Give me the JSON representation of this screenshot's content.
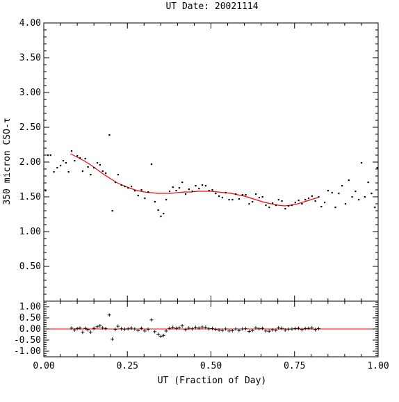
{
  "chart_data": [
    {
      "type": "scatter",
      "title": "UT Date: 20021114",
      "xlabel": "",
      "ylabel": "350 micron CSO-τ",
      "xlim": [
        0,
        1
      ],
      "ylim": [
        0,
        4
      ],
      "x_ticks": [
        "0.00",
        "0.25",
        "0.50",
        "0.75",
        "1.00"
      ],
      "y_ticks": [
        "4.00",
        "3.50",
        "3.00",
        "2.50",
        "2.00",
        "1.50",
        "1.00",
        "0.50"
      ],
      "grid": false,
      "series": [
        {
          "marker": "dot",
          "color": "#000000",
          "points": [
            [
              0.005,
              1.59
            ],
            [
              0.012,
              2.1
            ],
            [
              0.02,
              2.1
            ],
            [
              0.03,
              1.86
            ],
            [
              0.04,
              1.92
            ],
            [
              0.05,
              1.95
            ],
            [
              0.058,
              2.02
            ],
            [
              0.066,
              1.99
            ],
            [
              0.074,
              1.86
            ],
            [
              0.083,
              2.16
            ],
            [
              0.092,
              2.02
            ],
            [
              0.1,
              2.09
            ],
            [
              0.108,
              2.06
            ],
            [
              0.116,
              1.87
            ],
            [
              0.124,
              2.05
            ],
            [
              0.132,
              1.93
            ],
            [
              0.14,
              1.82
            ],
            [
              0.15,
              1.92
            ],
            [
              0.16,
              1.99
            ],
            [
              0.168,
              1.96
            ],
            [
              0.176,
              1.87
            ],
            [
              0.185,
              1.84
            ],
            [
              0.196,
              2.39
            ],
            [
              0.205,
              1.3
            ],
            [
              0.214,
              1.71
            ],
            [
              0.222,
              1.82
            ],
            [
              0.232,
              1.67
            ],
            [
              0.242,
              1.65
            ],
            [
              0.252,
              1.63
            ],
            [
              0.262,
              1.65
            ],
            [
              0.272,
              1.59
            ],
            [
              0.282,
              1.52
            ],
            [
              0.292,
              1.6
            ],
            [
              0.302,
              1.48
            ],
            [
              0.312,
              1.57
            ],
            [
              0.322,
              1.97
            ],
            [
              0.332,
              1.43
            ],
            [
              0.342,
              1.31
            ],
            [
              0.35,
              1.22
            ],
            [
              0.358,
              1.26
            ],
            [
              0.366,
              1.46
            ],
            [
              0.376,
              1.58
            ],
            [
              0.386,
              1.64
            ],
            [
              0.396,
              1.59
            ],
            [
              0.405,
              1.63
            ],
            [
              0.414,
              1.71
            ],
            [
              0.424,
              1.54
            ],
            [
              0.434,
              1.61
            ],
            [
              0.444,
              1.58
            ],
            [
              0.454,
              1.66
            ],
            [
              0.464,
              1.62
            ],
            [
              0.474,
              1.67
            ],
            [
              0.484,
              1.66
            ],
            [
              0.494,
              1.59
            ],
            [
              0.504,
              1.6
            ],
            [
              0.514,
              1.55
            ],
            [
              0.524,
              1.51
            ],
            [
              0.534,
              1.49
            ],
            [
              0.544,
              1.56
            ],
            [
              0.554,
              1.46
            ],
            [
              0.564,
              1.46
            ],
            [
              0.574,
              1.54
            ],
            [
              0.584,
              1.47
            ],
            [
              0.594,
              1.53
            ],
            [
              0.604,
              1.53
            ],
            [
              0.614,
              1.4
            ],
            [
              0.624,
              1.43
            ],
            [
              0.634,
              1.54
            ],
            [
              0.644,
              1.49
            ],
            [
              0.654,
              1.5
            ],
            [
              0.664,
              1.38
            ],
            [
              0.674,
              1.35
            ],
            [
              0.684,
              1.41
            ],
            [
              0.694,
              1.38
            ],
            [
              0.702,
              1.46
            ],
            [
              0.712,
              1.44
            ],
            [
              0.722,
              1.33
            ],
            [
              0.732,
              1.37
            ],
            [
              0.742,
              1.38
            ],
            [
              0.752,
              1.42
            ],
            [
              0.762,
              1.45
            ],
            [
              0.772,
              1.4
            ],
            [
              0.782,
              1.46
            ],
            [
              0.792,
              1.48
            ],
            [
              0.802,
              1.51
            ],
            [
              0.812,
              1.44
            ],
            [
              0.822,
              1.5
            ],
            [
              0.83,
              1.36
            ],
            [
              0.84,
              1.42
            ],
            [
              0.85,
              1.59
            ],
            [
              0.862,
              1.56
            ],
            [
              0.872,
              1.35
            ],
            [
              0.882,
              1.55
            ],
            [
              0.892,
              1.66
            ],
            [
              0.902,
              1.4
            ],
            [
              0.912,
              1.74
            ],
            [
              0.922,
              1.5
            ],
            [
              0.932,
              1.58
            ],
            [
              0.942,
              1.46
            ],
            [
              0.95,
              1.99
            ],
            [
              0.96,
              1.5
            ],
            [
              0.97,
              1.71
            ],
            [
              0.98,
              1.55
            ],
            [
              0.99,
              1.35
            ],
            [
              0.997,
              1.92
            ]
          ]
        },
        {
          "type": "line",
          "color": "#ff0000",
          "x": [
            0.08,
            0.1,
            0.12,
            0.14,
            0.16,
            0.18,
            0.2,
            0.22,
            0.24,
            0.26,
            0.28,
            0.3,
            0.32,
            0.34,
            0.36,
            0.38,
            0.4,
            0.42,
            0.44,
            0.46,
            0.48,
            0.5,
            0.52,
            0.54,
            0.56,
            0.58,
            0.6,
            0.62,
            0.64,
            0.66,
            0.68,
            0.7,
            0.72,
            0.74,
            0.76,
            0.78,
            0.8,
            0.82
          ],
          "y": [
            2.12,
            2.07,
            2.02,
            1.96,
            1.89,
            1.82,
            1.76,
            1.7,
            1.66,
            1.62,
            1.59,
            1.57,
            1.56,
            1.55,
            1.55,
            1.55,
            1.56,
            1.57,
            1.57,
            1.58,
            1.58,
            1.58,
            1.57,
            1.56,
            1.55,
            1.53,
            1.51,
            1.48,
            1.45,
            1.42,
            1.4,
            1.38,
            1.37,
            1.38,
            1.4,
            1.43,
            1.46,
            1.49
          ]
        }
      ]
    },
    {
      "type": "scatter",
      "title": "",
      "xlabel": "UT (Fraction of Day)",
      "ylabel": "",
      "xlim": [
        0,
        1
      ],
      "ylim": [
        -1.25,
        1.25
      ],
      "x_ticks": [
        "0.00",
        "0.25",
        "0.50",
        "0.75",
        "1.00"
      ],
      "y_ticks": [
        "1.00",
        "0.50",
        "0.00",
        "-0.50",
        "-1.00"
      ],
      "grid": false,
      "zero_line_color": "#ff0000",
      "series": [
        {
          "marker": "plus",
          "color": "#000000",
          "points": [
            [
              0.083,
              0.04
            ],
            [
              0.092,
              -0.05
            ],
            [
              0.1,
              0.02
            ],
            [
              0.108,
              0.04
            ],
            [
              0.116,
              -0.15
            ],
            [
              0.124,
              0.03
            ],
            [
              0.132,
              -0.03
            ],
            [
              0.14,
              -0.14
            ],
            [
              0.15,
              0.03
            ],
            [
              0.16,
              0.1
            ],
            [
              0.168,
              0.14
            ],
            [
              0.176,
              0.05
            ],
            [
              0.185,
              0.02
            ],
            [
              0.196,
              0.63
            ],
            [
              0.205,
              -0.46
            ],
            [
              0.214,
              -0.02
            ],
            [
              0.222,
              0.12
            ],
            [
              0.232,
              0.01
            ],
            [
              0.242,
              -0.01
            ],
            [
              0.252,
              0.01
            ],
            [
              0.262,
              0.04
            ],
            [
              0.272,
              0.0
            ],
            [
              0.282,
              -0.07
            ],
            [
              0.292,
              0.03
            ],
            [
              0.302,
              -0.09
            ],
            [
              0.312,
              -0.01
            ],
            [
              0.322,
              0.41
            ],
            [
              0.332,
              -0.12
            ],
            [
              0.342,
              -0.24
            ],
            [
              0.35,
              -0.33
            ],
            [
              0.358,
              -0.29
            ],
            [
              0.366,
              -0.09
            ],
            [
              0.376,
              0.03
            ],
            [
              0.386,
              0.08
            ],
            [
              0.396,
              0.03
            ],
            [
              0.405,
              0.06
            ],
            [
              0.414,
              0.14
            ],
            [
              0.424,
              -0.03
            ],
            [
              0.434,
              0.04
            ],
            [
              0.444,
              0.01
            ],
            [
              0.454,
              0.08
            ],
            [
              0.464,
              0.04
            ],
            [
              0.474,
              0.09
            ],
            [
              0.484,
              0.08
            ],
            [
              0.494,
              0.01
            ],
            [
              0.504,
              0.02
            ],
            [
              0.514,
              -0.02
            ],
            [
              0.524,
              -0.05
            ],
            [
              0.534,
              -0.07
            ],
            [
              0.544,
              0.0
            ],
            [
              0.554,
              -0.09
            ],
            [
              0.564,
              -0.08
            ],
            [
              0.574,
              0.0
            ],
            [
              0.584,
              -0.07
            ],
            [
              0.594,
              0.0
            ],
            [
              0.604,
              0.01
            ],
            [
              0.614,
              -0.11
            ],
            [
              0.624,
              -0.07
            ],
            [
              0.634,
              0.05
            ],
            [
              0.644,
              0.01
            ],
            [
              0.654,
              0.03
            ],
            [
              0.664,
              -0.09
            ],
            [
              0.674,
              -0.1
            ],
            [
              0.684,
              -0.04
            ],
            [
              0.694,
              -0.06
            ],
            [
              0.702,
              0.05
            ],
            [
              0.712,
              0.03
            ],
            [
              0.722,
              -0.05
            ],
            [
              0.732,
              -0.01
            ],
            [
              0.742,
              0.0
            ],
            [
              0.752,
              0.02
            ],
            [
              0.762,
              0.03
            ],
            [
              0.772,
              -0.03
            ],
            [
              0.782,
              0.02
            ],
            [
              0.792,
              0.03
            ],
            [
              0.802,
              0.05
            ],
            [
              0.812,
              -0.03
            ],
            [
              0.822,
              0.02
            ]
          ]
        }
      ]
    }
  ]
}
